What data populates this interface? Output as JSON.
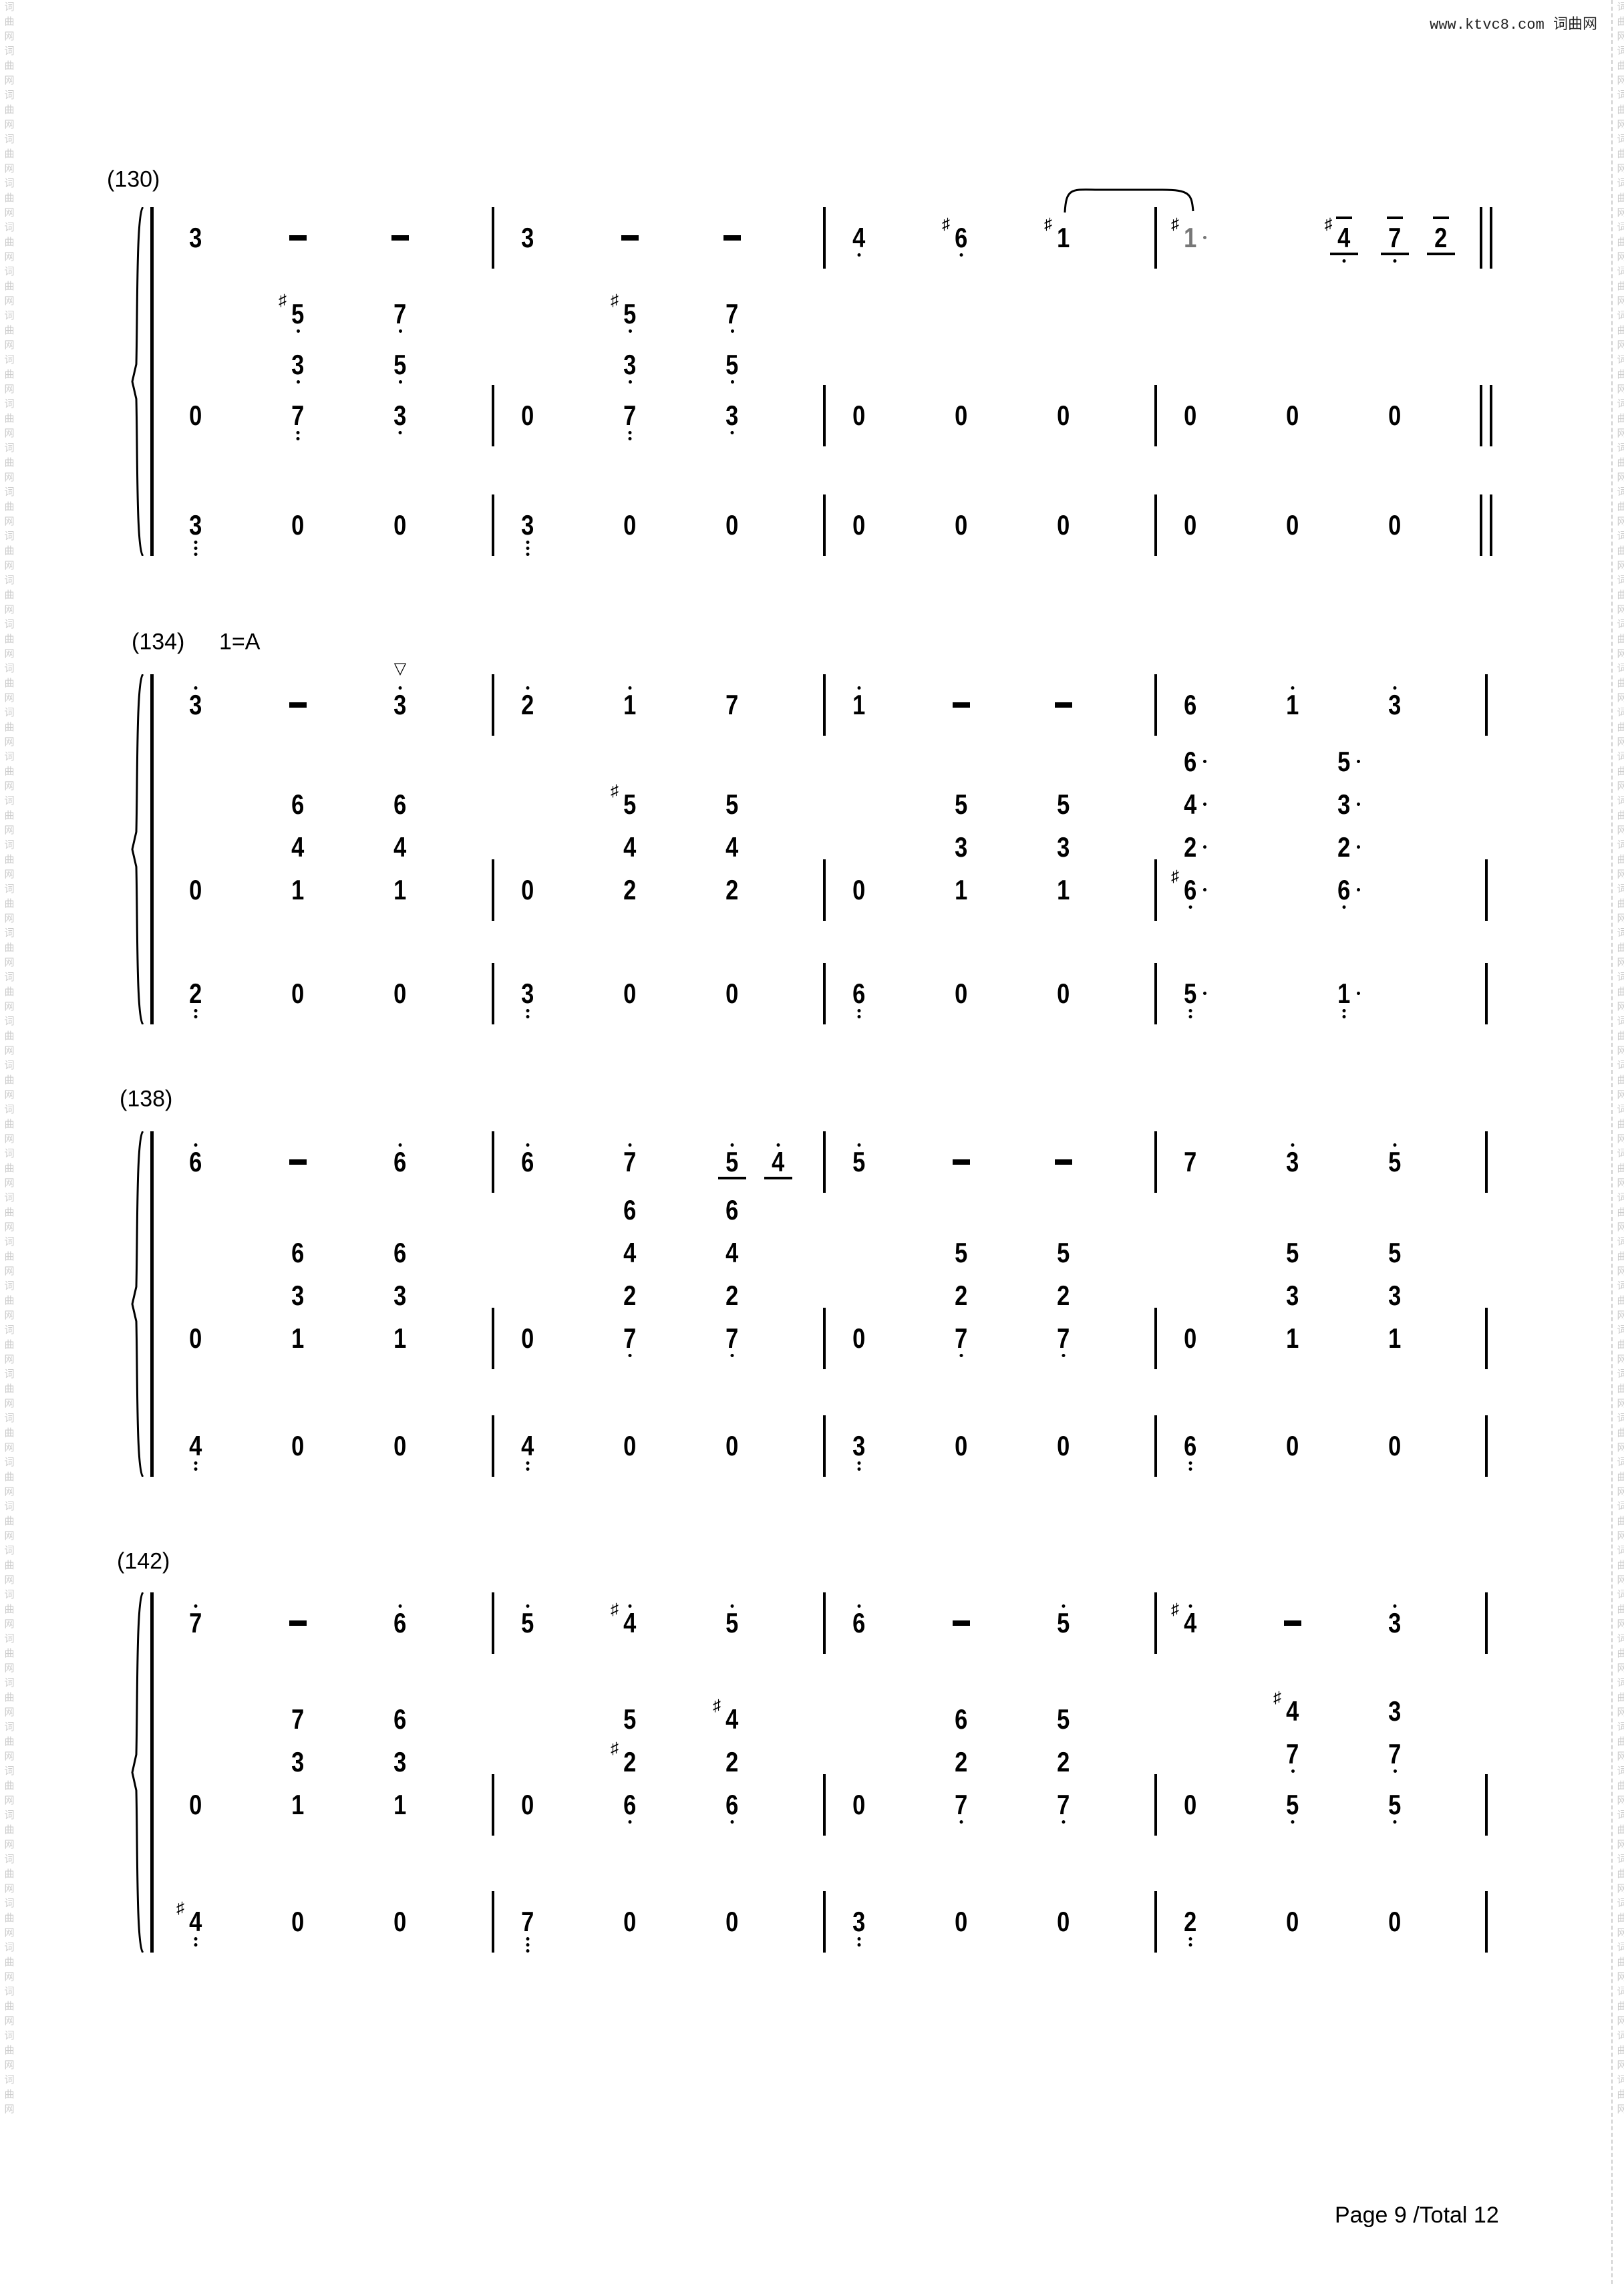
{
  "header": {
    "site": "www.ktvc8.com 词曲网"
  },
  "watermark": "词曲网词曲网词曲网词曲网词曲网词曲网词曲网词曲网词曲网词曲网词曲网词曲网词曲网词曲网词曲网词曲网词曲网词曲网词曲网词曲网词曲网词曲网词曲网词曲网词曲网词曲网词曲网词曲网词曲网词曲网词曲网词曲网词曲网词曲网词曲网词曲网词曲网词曲网词曲网词曲网词曲网词曲网词曲网词曲网词曲网词曲网词曲网词曲网",
  "footer": {
    "page": "Page 9 /Total 12"
  },
  "notation_legend": {
    "#": "sharp",
    "'": "high dot",
    ",": "low dot",
    ".": "augmentation dot",
    "_": "underline",
    "^": "overline",
    "~": "grey",
    "v": "breath mark",
    "-": "dash"
  },
  "systems": [
    {
      "label": "(130)",
      "key": "",
      "double_bar": true,
      "rows": [
        [
          [
            "3",
            "-",
            "-"
          ],
          [
            "3",
            "-",
            "-"
          ],
          [
            "4,",
            "#6,",
            "#1"
          ],
          {
            "at": [
              0,
              1.5,
              2,
              2.45
            ],
            "beats": [
              "#1.~",
              "#4,_^",
              "7,_^",
              "2_^"
            ]
          }
        ],
        [
          [
            "0",
            [
              "7,,",
              "3,",
              "#5,"
            ],
            [
              "3,",
              "5,",
              "7,"
            ]
          ],
          [
            "0",
            [
              "7,,",
              "3,",
              "#5,"
            ],
            [
              "3,",
              "5,",
              "7,"
            ]
          ],
          [
            "0",
            "0",
            "0"
          ],
          [
            "0",
            "0",
            "0"
          ]
        ],
        [
          [
            "3,,,",
            "0",
            "0"
          ],
          [
            "3,,,",
            "0",
            "0"
          ],
          [
            "0",
            "0",
            "0"
          ],
          [
            "0",
            "0",
            "0"
          ]
        ]
      ]
    },
    {
      "label": "(134)",
      "key": "1=A",
      "double_bar": false,
      "rows": [
        [
          [
            "3'",
            "-",
            "3'v"
          ],
          [
            "2'",
            "1'",
            "7"
          ],
          [
            "1'",
            "-",
            "-"
          ],
          [
            "6",
            "1'",
            "3'"
          ]
        ],
        [
          [
            "0",
            [
              "1",
              "4",
              "6"
            ],
            [
              "1",
              "4",
              "6"
            ]
          ],
          [
            "0",
            [
              "2",
              "4",
              "#5"
            ],
            [
              "2",
              "4",
              "5"
            ]
          ],
          [
            "0",
            [
              "1",
              "3",
              "5"
            ],
            [
              "1",
              "3",
              "5"
            ]
          ],
          {
            "at": [
              0,
              1.5
            ],
            "beats": [
              [
                "#6,.",
                "2.",
                "4.",
                "6."
              ],
              [
                "6,.",
                "2.",
                "3.",
                "5."
              ]
            ]
          }
        ],
        [
          [
            "2,,",
            "0",
            "0"
          ],
          [
            "3,,",
            "0",
            "0"
          ],
          [
            "6,,",
            "0",
            "0"
          ],
          {
            "at": [
              0,
              1.5
            ],
            "beats": [
              "5,,.",
              "1,,."
            ]
          }
        ]
      ]
    },
    {
      "label": "(138)",
      "key": "",
      "double_bar": false,
      "rows": [
        [
          [
            "6'",
            "-",
            "6'"
          ],
          {
            "at": [
              0,
              1,
              2,
              2.45
            ],
            "beats": [
              "6'",
              "7'",
              "5'_",
              "4'_"
            ]
          },
          [
            "5'",
            "-",
            "-"
          ],
          [
            "7",
            "3'",
            "5'"
          ]
        ],
        [
          [
            "0",
            [
              "1",
              "3",
              "6"
            ],
            [
              "1",
              "3",
              "6"
            ]
          ],
          [
            "0",
            [
              "7,",
              "2",
              "4",
              "6"
            ],
            [
              "7,",
              "2",
              "4",
              "6"
            ]
          ],
          [
            "0",
            [
              "7,",
              "2",
              "5"
            ],
            [
              "7,",
              "2",
              "5"
            ]
          ],
          [
            "0",
            [
              "1",
              "3",
              "5"
            ],
            [
              "1",
              "3",
              "5"
            ]
          ]
        ],
        [
          [
            "4,,",
            "0",
            "0"
          ],
          [
            "4,,",
            "0",
            "0"
          ],
          [
            "3,,",
            "0",
            "0"
          ],
          [
            "6,,",
            "0",
            "0"
          ]
        ]
      ]
    },
    {
      "label": "(142)",
      "key": "",
      "double_bar": false,
      "rows": [
        [
          [
            "7'",
            "-",
            "6'"
          ],
          [
            "5'",
            "#4'",
            "5'"
          ],
          [
            "6'",
            "-",
            "5'"
          ],
          [
            "#4'",
            "-",
            "3'"
          ]
        ],
        [
          [
            "0",
            [
              "1",
              "3",
              "7"
            ],
            [
              "1",
              "3",
              "6"
            ]
          ],
          [
            "0",
            [
              "6,",
              "#2",
              "5"
            ],
            [
              "6,",
              "2",
              "#4"
            ]
          ],
          [
            "0",
            [
              "7,",
              "2",
              "6"
            ],
            [
              "7,",
              "2",
              "5"
            ]
          ],
          [
            "0",
            [
              "5,",
              "7,",
              "#4"
            ],
            [
              "5,",
              "7,",
              "3"
            ]
          ]
        ],
        [
          [
            "#4,,",
            "0",
            "0"
          ],
          [
            "7,,,",
            "0",
            "0"
          ],
          [
            "3,,",
            "0",
            "0"
          ],
          [
            "2,,",
            "0",
            "0"
          ]
        ]
      ]
    }
  ]
}
